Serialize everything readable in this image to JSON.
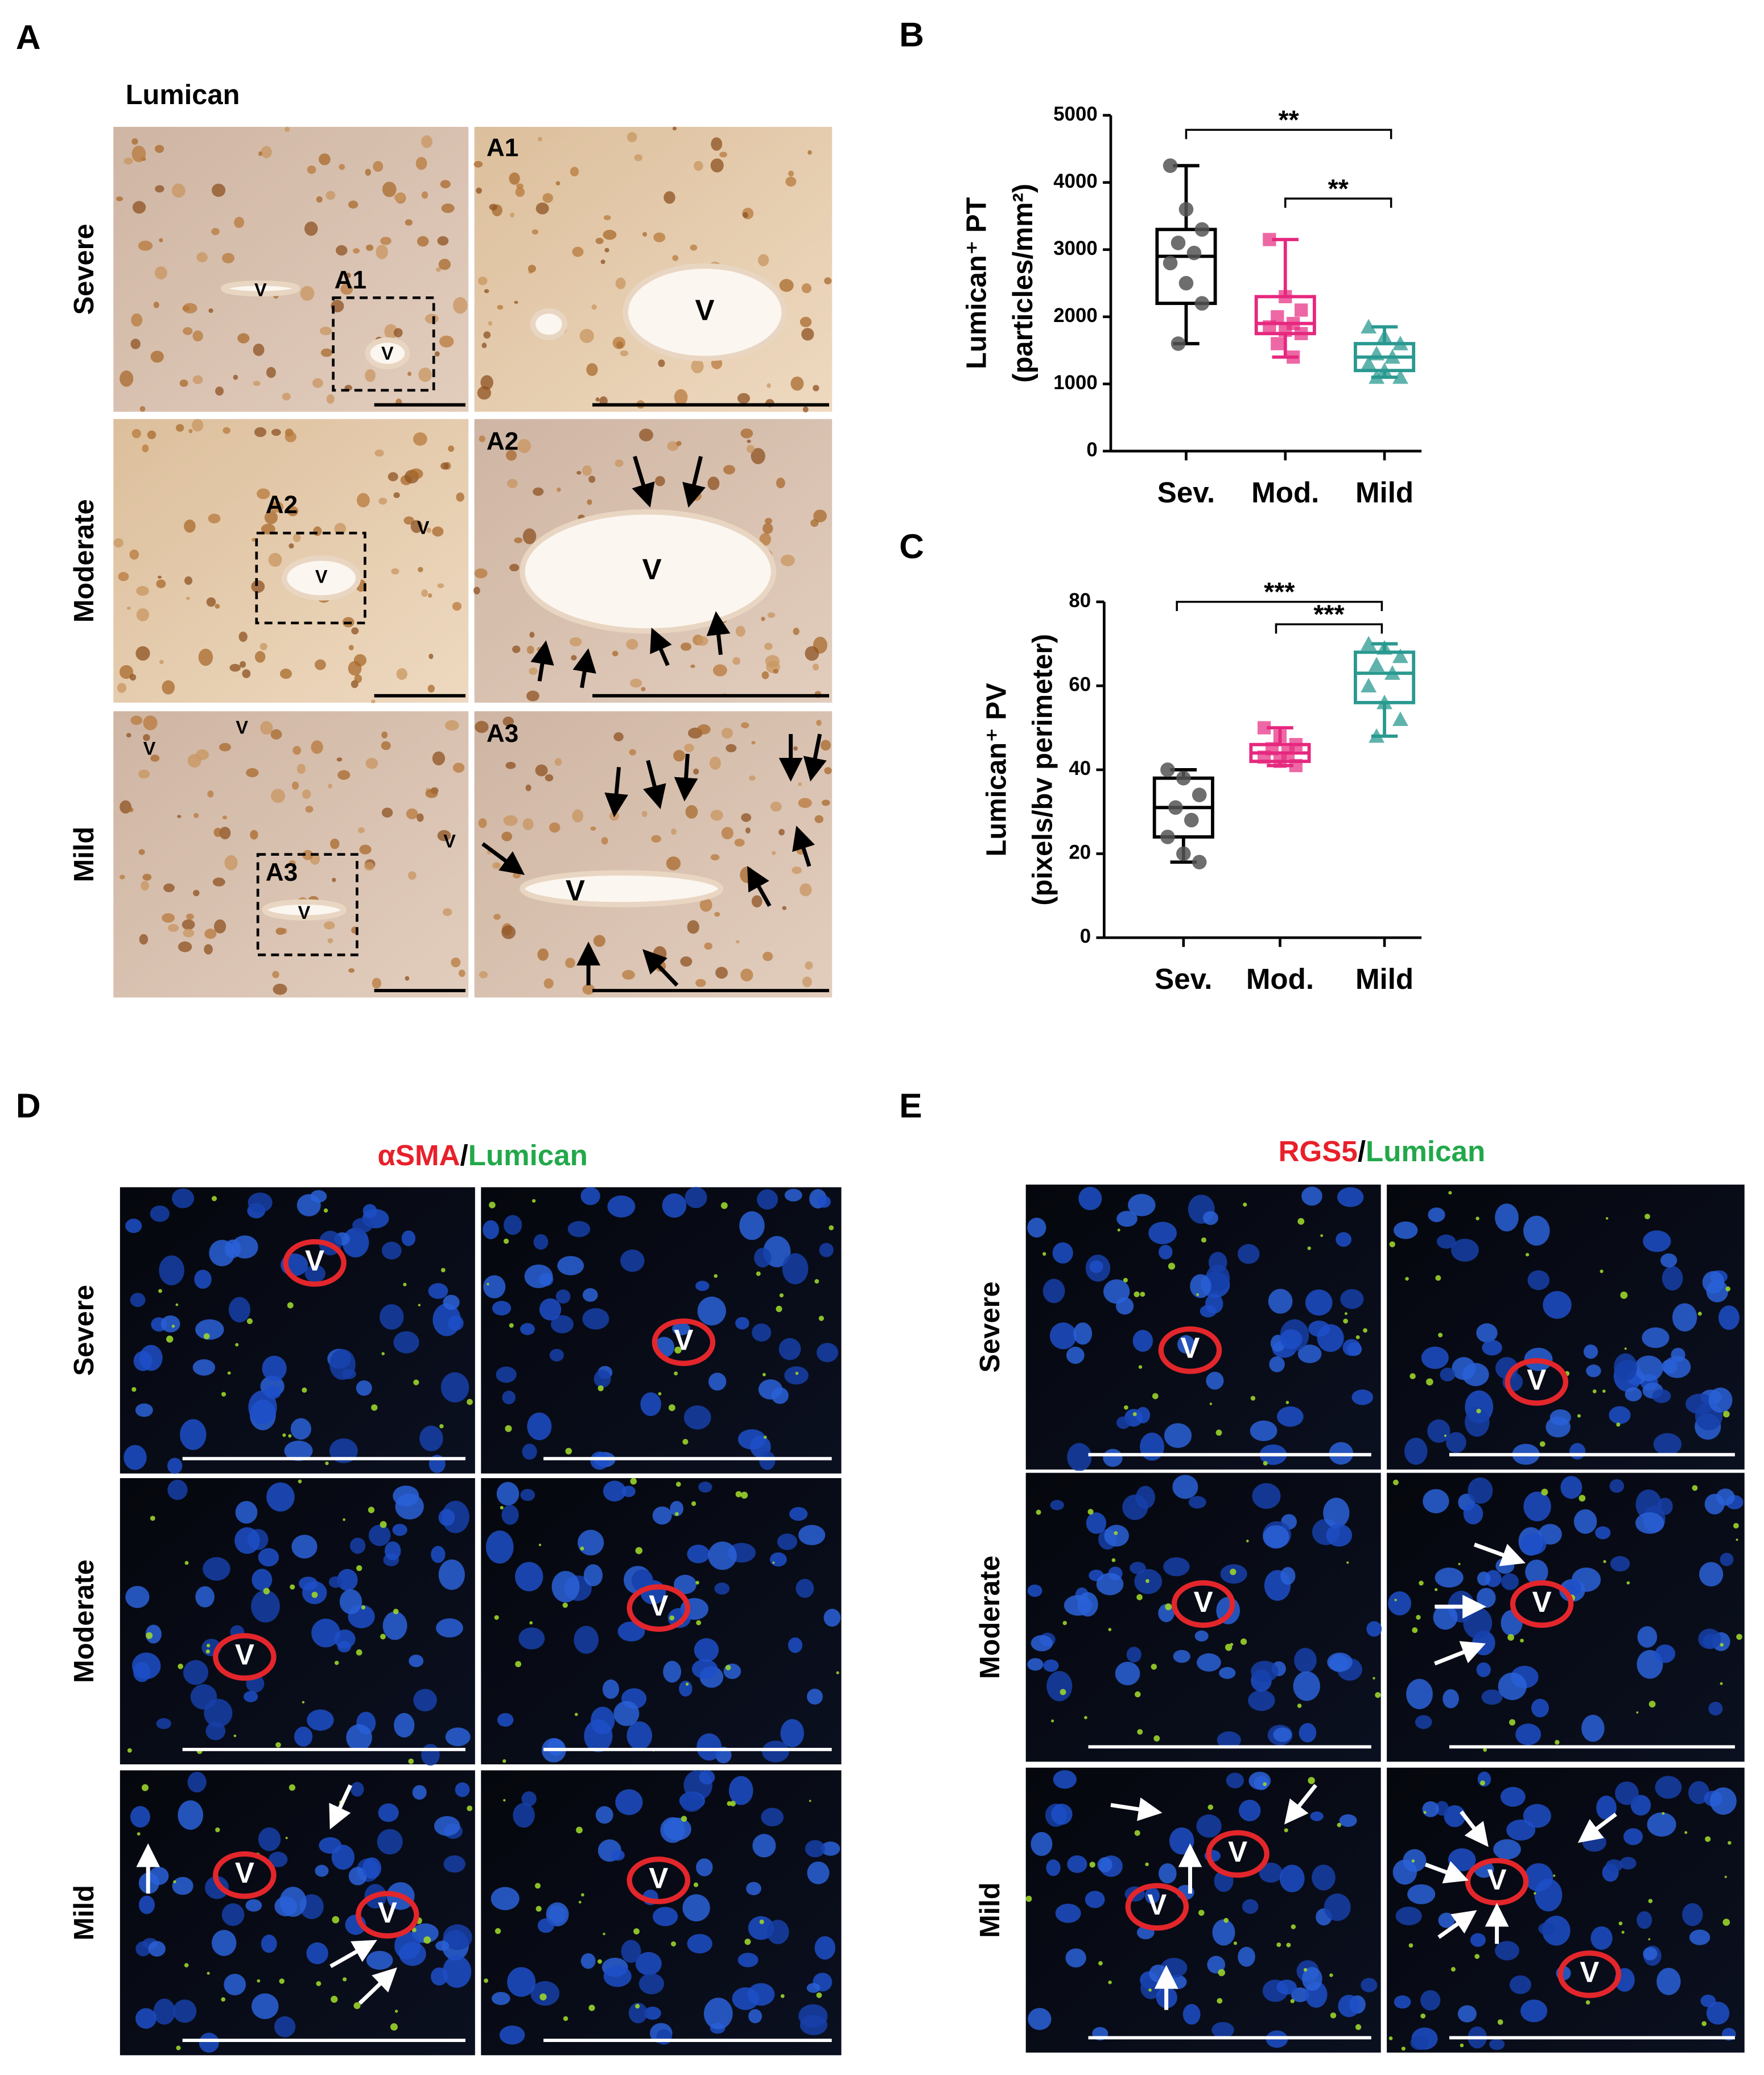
{
  "chart_data": [
    {
      "type": "box",
      "panel": "B",
      "ylabel": [
        "Lumican⁺ PT",
        "(particles/mm²)"
      ],
      "categories": [
        "Sev.",
        "Mod.",
        "Mild"
      ],
      "marker_shapes": [
        "circle",
        "square",
        "triangle"
      ],
      "ylim": [
        0,
        5000
      ],
      "yticks": [
        0,
        1000,
        2000,
        3000,
        4000,
        5000
      ],
      "annotations": [
        "**",
        "**"
      ],
      "boxes": [
        {
          "color": "#000000",
          "min": 1600,
          "q1": 2200,
          "median": 2900,
          "q3": 3300,
          "max": 4250,
          "points": [
            4250,
            3600,
            3300,
            3100,
            2950,
            2800,
            2500,
            2200,
            1600
          ]
        },
        {
          "color": "#e6287f",
          "min": 1400,
          "q1": 1750,
          "median": 1900,
          "q3": 2300,
          "max": 3150,
          "points": [
            3150,
            2300,
            2100,
            2000,
            1900,
            1850,
            1800,
            1750,
            1600,
            1400
          ]
        },
        {
          "color": "#2a9990",
          "min": 1100,
          "q1": 1200,
          "median": 1400,
          "q3": 1600,
          "max": 1850,
          "points": [
            1850,
            1700,
            1600,
            1450,
            1400,
            1300,
            1200,
            1100,
            1100
          ]
        }
      ]
    },
    {
      "type": "box",
      "panel": "C",
      "ylabel": [
        "Lumican⁺ PV",
        "(pixels/bv perimeter)"
      ],
      "categories": [
        "Sev.",
        "Mod.",
        "Mild"
      ],
      "marker_shapes": [
        "circle",
        "square",
        "triangle"
      ],
      "ylim": [
        0,
        80
      ],
      "yticks": [
        0,
        20,
        40,
        60,
        80
      ],
      "annotations": [
        "***",
        "***"
      ],
      "boxes": [
        {
          "color": "#000000",
          "min": 18,
          "q1": 24,
          "median": 31,
          "q3": 38,
          "max": 40,
          "points": [
            40,
            38,
            34,
            31,
            28,
            24,
            20,
            18
          ]
        },
        {
          "color": "#e6287f",
          "min": 41,
          "q1": 42,
          "median": 44,
          "q3": 46,
          "max": 50,
          "points": [
            50,
            48,
            46,
            45,
            44,
            43,
            42,
            41
          ]
        },
        {
          "color": "#2a9990",
          "min": 48,
          "q1": 56,
          "median": 63,
          "q3": 68,
          "max": 70,
          "points": [
            70,
            69,
            67,
            65,
            63,
            60,
            56,
            52,
            48
          ]
        }
      ]
    }
  ],
  "panel_a": {
    "label": "A",
    "title": "Lumican",
    "row_labels": [
      "Severe",
      "Moderate",
      "Mild"
    ],
    "images": [
      {
        "labels": [
          "A1",
          "V",
          "V"
        ]
      },
      {
        "labels": [
          "A1",
          "V"
        ]
      },
      {
        "labels": [
          "A2",
          "V",
          "V"
        ]
      },
      {
        "labels": [
          "A2",
          "V"
        ]
      },
      {
        "labels": [
          "V",
          "V",
          "A3",
          "V",
          "V"
        ]
      },
      {
        "labels": [
          "A3",
          "V"
        ]
      }
    ]
  },
  "panel_d": {
    "label": "D",
    "title_parts": [
      {
        "text": "αSMA",
        "color": "#e8202a"
      },
      {
        "text": "/",
        "color": "#000000"
      },
      {
        "text": "Lumican",
        "color": "#22a84a"
      }
    ],
    "row_labels": [
      "Severe",
      "Moderate",
      "Mild"
    ],
    "images": [
      {
        "labels": [
          "V"
        ]
      },
      {
        "labels": [
          "V"
        ]
      },
      {
        "labels": [
          "V"
        ]
      },
      {
        "labels": [
          "V"
        ]
      },
      {
        "labels": [
          "V",
          "V"
        ]
      },
      {
        "labels": [
          "V"
        ]
      }
    ]
  },
  "panel_e": {
    "label": "E",
    "title_parts": [
      {
        "text": "RGS5",
        "color": "#e8202a"
      },
      {
        "text": "/",
        "color": "#000000"
      },
      {
        "text": "Lumican",
        "color": "#22a84a"
      }
    ],
    "row_labels": [
      "Severe",
      "Moderate",
      "Mild"
    ],
    "images": [
      {
        "labels": [
          "V"
        ]
      },
      {
        "labels": [
          "V"
        ]
      },
      {
        "labels": [
          "V"
        ]
      },
      {
        "labels": [
          "V"
        ]
      },
      {
        "labels": [
          "V",
          "V"
        ]
      },
      {
        "labels": [
          "V",
          "V"
        ]
      }
    ]
  }
}
